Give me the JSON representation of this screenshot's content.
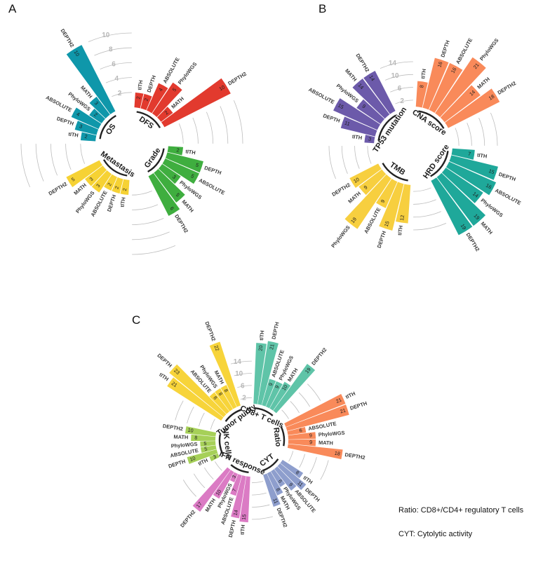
{
  "chart_data": [
    {
      "type": "circular-bar",
      "panel": "A",
      "methods": [
        "tITH",
        "DEPTH",
        "ABSOLUTE",
        "PhyloWGS",
        "MATH",
        "DEPTH2"
      ],
      "scale_max": 10,
      "scale_ticks": [
        "2",
        "4",
        "6",
        "8",
        "10"
      ],
      "groups": [
        {
          "name": "DFS",
          "color": "#e23a2e",
          "values": [
            2,
            2,
            4,
            5,
            2,
            10
          ]
        },
        {
          "name": "Grade",
          "color": "#3fae3f",
          "values": [
            2,
            5,
            5,
            3,
            5,
            6
          ]
        },
        {
          "name": "Metastasis",
          "color": "#f6d234",
          "values": [
            2,
            2,
            2,
            3,
            3,
            5
          ]
        },
        {
          "name": "OS",
          "color": "#0f97aa",
          "values": [
            2,
            3,
            4,
            2,
            3,
            10
          ]
        }
      ]
    },
    {
      "type": "circular-bar",
      "panel": "B",
      "methods": [
        "tITH",
        "DEPTH",
        "ABSOLUTE",
        "PhyloWGS",
        "MATH",
        "DEPTH2"
      ],
      "scale_max": 21,
      "scale_ticks": [
        "2",
        "6",
        "10",
        "14"
      ],
      "groups": [
        {
          "name": "CNA score",
          "color": "#f98a5a",
          "values": [
            8,
            16,
            16,
            21,
            14,
            18
          ]
        },
        {
          "name": "HRD score",
          "color": "#1fa89a",
          "values": [
            7,
            15,
            16,
            14,
            19,
            19
          ]
        },
        {
          "name": "TMB",
          "color": "#f7cf3f",
          "values": [
            12,
            15,
            9,
            19,
            9,
            10
          ]
        },
        {
          "name": "TP53 mutation",
          "color": "#6c5aaa",
          "values": [
            3,
            11,
            15,
            9,
            14,
            14
          ]
        }
      ]
    },
    {
      "type": "circular-bar",
      "panel": "C",
      "methods": [
        "tITH",
        "DEPTH",
        "ABSOLUTE",
        "PhyloWGS",
        "MATH",
        "DEPTH2"
      ],
      "scale_max": 23,
      "scale_ticks": [
        "2",
        "6",
        "10",
        "14"
      ],
      "groups": [
        {
          "name": "CD8+ T cells",
          "color": "#5fc4a8",
          "values": [
            20,
            21,
            9,
            9,
            10,
            19
          ]
        },
        {
          "name": "Ratio",
          "color": "#f98a5a",
          "values": [
            21,
            21,
            6,
            9,
            9,
            18
          ]
        },
        {
          "name": "CYT",
          "color": "#8e9ecd",
          "values": [
            8,
            11,
            9,
            6,
            8,
            11
          ]
        },
        {
          "name": "IFN response",
          "color": "#db7bc4",
          "values": [
            15,
            14,
            7,
            3,
            10,
            17
          ]
        },
        {
          "name": "NK cells",
          "color": "#a6d058",
          "values": [
            3,
            10,
            5,
            5,
            8,
            10
          ]
        },
        {
          "name": "Tumor purity",
          "color": "#f7d43a",
          "values": [
            21,
            23,
            8,
            8,
            8,
            22
          ]
        }
      ]
    }
  ],
  "notes": {
    "ratio": "Ratio: CD8+/CD4+ regulatory T cells",
    "cyt": "CYT: Cytolytic activity"
  }
}
